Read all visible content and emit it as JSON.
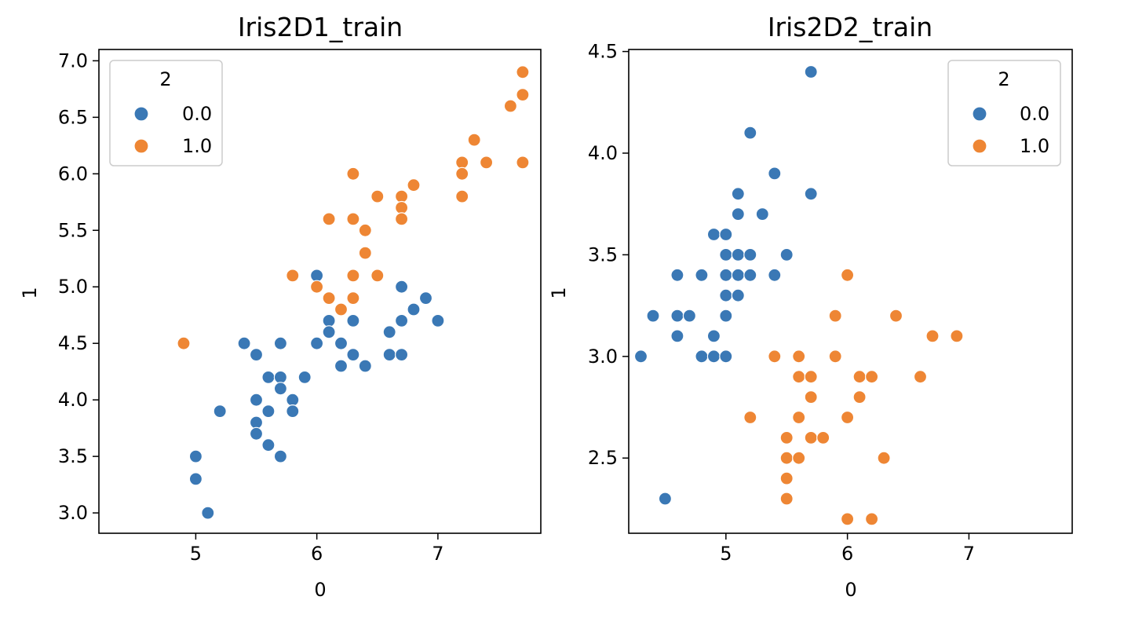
{
  "chart_data": [
    {
      "type": "scatter",
      "title": "Iris2D1_train",
      "xlabel": "0",
      "ylabel": "1",
      "xlim": [
        4.2,
        7.85
      ],
      "ylim": [
        2.82,
        7.1
      ],
      "xticks": [
        5,
        6,
        7
      ],
      "xtick_labels": [
        "5",
        "6",
        "7"
      ],
      "yticks": [
        3.0,
        3.5,
        4.0,
        4.5,
        5.0,
        5.5,
        6.0,
        6.5,
        7.0
      ],
      "ytick_labels": [
        "3.0",
        "3.5",
        "4.0",
        "4.5",
        "5.0",
        "5.5",
        "6.0",
        "6.5",
        "7.0"
      ],
      "grid": false,
      "legend": {
        "title": "2",
        "placement": "upper-left",
        "entries": [
          "0.0",
          "1.0"
        ]
      },
      "series": [
        {
          "name": "0.0",
          "color": "#3a78b5",
          "points": [
            [
              5.0,
              3.5
            ],
            [
              5.0,
              3.3
            ],
            [
              5.1,
              3.0
            ],
            [
              5.2,
              3.9
            ],
            [
              5.4,
              4.5
            ],
            [
              5.5,
              4.4
            ],
            [
              5.5,
              4.0
            ],
            [
              5.5,
              3.8
            ],
            [
              5.5,
              3.7
            ],
            [
              5.6,
              4.2
            ],
            [
              5.6,
              3.9
            ],
            [
              5.6,
              3.6
            ],
            [
              5.7,
              4.5
            ],
            [
              5.7,
              4.2
            ],
            [
              5.7,
              4.1
            ],
            [
              5.7,
              3.5
            ],
            [
              5.8,
              4.0
            ],
            [
              5.8,
              3.9
            ],
            [
              5.9,
              4.2
            ],
            [
              6.0,
              5.1
            ],
            [
              6.0,
              4.5
            ],
            [
              6.1,
              4.7
            ],
            [
              6.1,
              4.6
            ],
            [
              6.2,
              4.5
            ],
            [
              6.2,
              4.3
            ],
            [
              6.3,
              4.7
            ],
            [
              6.3,
              4.4
            ],
            [
              6.4,
              4.3
            ],
            [
              6.6,
              4.6
            ],
            [
              6.6,
              4.4
            ],
            [
              6.7,
              5.0
            ],
            [
              6.7,
              4.7
            ],
            [
              6.7,
              4.4
            ],
            [
              6.8,
              4.8
            ],
            [
              6.9,
              4.9
            ],
            [
              7.0,
              4.7
            ]
          ]
        },
        {
          "name": "1.0",
          "color": "#ee8634",
          "points": [
            [
              4.9,
              4.5
            ],
            [
              5.8,
              5.1
            ],
            [
              6.0,
              5.0
            ],
            [
              6.1,
              5.6
            ],
            [
              6.1,
              4.9
            ],
            [
              6.2,
              4.8
            ],
            [
              6.3,
              6.0
            ],
            [
              6.3,
              5.6
            ],
            [
              6.3,
              5.1
            ],
            [
              6.3,
              4.9
            ],
            [
              6.4,
              5.5
            ],
            [
              6.4,
              5.3
            ],
            [
              6.5,
              5.8
            ],
            [
              6.5,
              5.1
            ],
            [
              6.7,
              5.8
            ],
            [
              6.7,
              5.7
            ],
            [
              6.7,
              5.6
            ],
            [
              6.8,
              5.9
            ],
            [
              7.2,
              6.1
            ],
            [
              7.2,
              6.0
            ],
            [
              7.2,
              5.8
            ],
            [
              7.3,
              6.3
            ],
            [
              7.4,
              6.1
            ],
            [
              7.6,
              6.6
            ],
            [
              7.7,
              6.9
            ],
            [
              7.7,
              6.7
            ],
            [
              7.7,
              6.1
            ]
          ]
        }
      ]
    },
    {
      "type": "scatter",
      "title": "Iris2D2_train",
      "xlabel": "0",
      "ylabel": "1",
      "xlim": [
        4.2,
        7.85
      ],
      "ylim": [
        2.13,
        4.51
      ],
      "xticks": [
        5,
        6,
        7
      ],
      "xtick_labels": [
        "5",
        "6",
        "7"
      ],
      "yticks": [
        2.5,
        3.0,
        3.5,
        4.0,
        4.5
      ],
      "ytick_labels": [
        "2.5",
        "3.0",
        "3.5",
        "4.0",
        "4.5"
      ],
      "grid": false,
      "legend": {
        "title": "2",
        "placement": "upper-right",
        "entries": [
          "0.0",
          "1.0"
        ]
      },
      "series": [
        {
          "name": "0.0",
          "color": "#3a78b5",
          "points": [
            [
              4.3,
              3.0
            ],
            [
              4.4,
              3.2
            ],
            [
              4.5,
              2.3
            ],
            [
              4.6,
              3.4
            ],
            [
              4.6,
              3.2
            ],
            [
              4.6,
              3.1
            ],
            [
              4.7,
              3.2
            ],
            [
              4.8,
              3.4
            ],
            [
              4.8,
              3.0
            ],
            [
              4.9,
              3.6
            ],
            [
              4.9,
              3.1
            ],
            [
              4.9,
              3.0
            ],
            [
              5.0,
              3.6
            ],
            [
              5.0,
              3.5
            ],
            [
              5.0,
              3.4
            ],
            [
              5.0,
              3.3
            ],
            [
              5.0,
              3.2
            ],
            [
              5.0,
              3.0
            ],
            [
              5.1,
              3.8
            ],
            [
              5.1,
              3.7
            ],
            [
              5.1,
              3.5
            ],
            [
              5.1,
              3.4
            ],
            [
              5.1,
              3.3
            ],
            [
              5.2,
              4.1
            ],
            [
              5.2,
              3.5
            ],
            [
              5.2,
              3.4
            ],
            [
              5.3,
              3.7
            ],
            [
              5.4,
              3.9
            ],
            [
              5.4,
              3.4
            ],
            [
              5.5,
              3.5
            ],
            [
              5.7,
              4.4
            ],
            [
              5.7,
              3.8
            ]
          ]
        },
        {
          "name": "1.0",
          "color": "#ee8634",
          "points": [
            [
              5.2,
              2.7
            ],
            [
              5.4,
              3.0
            ],
            [
              5.5,
              2.6
            ],
            [
              5.5,
              2.5
            ],
            [
              5.5,
              2.4
            ],
            [
              5.5,
              2.3
            ],
            [
              5.6,
              3.0
            ],
            [
              5.6,
              2.9
            ],
            [
              5.6,
              2.7
            ],
            [
              5.6,
              2.5
            ],
            [
              5.7,
              2.9
            ],
            [
              5.7,
              2.8
            ],
            [
              5.7,
              2.6
            ],
            [
              5.8,
              2.6
            ],
            [
              5.9,
              3.2
            ],
            [
              5.9,
              3.0
            ],
            [
              6.0,
              3.4
            ],
            [
              6.0,
              2.7
            ],
            [
              6.0,
              2.2
            ],
            [
              6.1,
              2.9
            ],
            [
              6.1,
              2.8
            ],
            [
              6.2,
              2.9
            ],
            [
              6.2,
              2.2
            ],
            [
              6.3,
              2.5
            ],
            [
              6.4,
              3.2
            ],
            [
              6.6,
              2.9
            ],
            [
              6.7,
              3.1
            ],
            [
              6.9,
              3.1
            ]
          ]
        }
      ]
    }
  ]
}
